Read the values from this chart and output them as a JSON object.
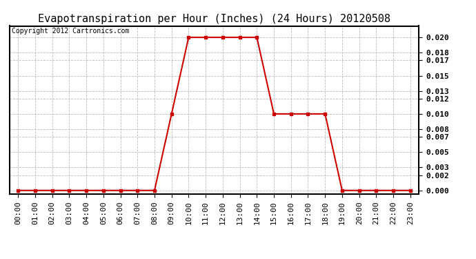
{
  "title": "Evapotranspiration per Hour (Inches) (24 Hours) 20120508",
  "copyright_text": "Copyright 2012 Cartronics.com",
  "hours": [
    0,
    1,
    2,
    3,
    4,
    5,
    6,
    7,
    8,
    9,
    10,
    11,
    12,
    13,
    14,
    15,
    16,
    17,
    18,
    19,
    20,
    21,
    22,
    23
  ],
  "values": [
    0.0,
    0.0,
    0.0,
    0.0,
    0.0,
    0.0,
    0.0,
    0.0,
    0.0,
    0.01,
    0.02,
    0.02,
    0.02,
    0.02,
    0.02,
    0.01,
    0.01,
    0.01,
    0.01,
    0.0,
    0.0,
    0.0,
    0.0,
    0.0
  ],
  "x_labels": [
    "00:00",
    "01:00",
    "02:00",
    "03:00",
    "04:00",
    "05:00",
    "06:00",
    "07:00",
    "08:00",
    "09:00",
    "10:00",
    "11:00",
    "12:00",
    "13:00",
    "14:00",
    "15:00",
    "16:00",
    "17:00",
    "18:00",
    "19:00",
    "20:00",
    "21:00",
    "22:00",
    "23:00"
  ],
  "y_ticks": [
    0.0,
    0.002,
    0.003,
    0.005,
    0.007,
    0.008,
    0.01,
    0.012,
    0.013,
    0.015,
    0.017,
    0.018,
    0.02
  ],
  "line_color": "#cc0000",
  "marker": "s",
  "marker_size": 3,
  "background_color": "#ffffff",
  "plot_bg_color": "#ffffff",
  "grid_color": "#bbbbbb",
  "title_fontsize": 11,
  "copyright_fontsize": 7,
  "tick_fontsize": 8,
  "ylim": [
    -0.0005,
    0.0215
  ]
}
